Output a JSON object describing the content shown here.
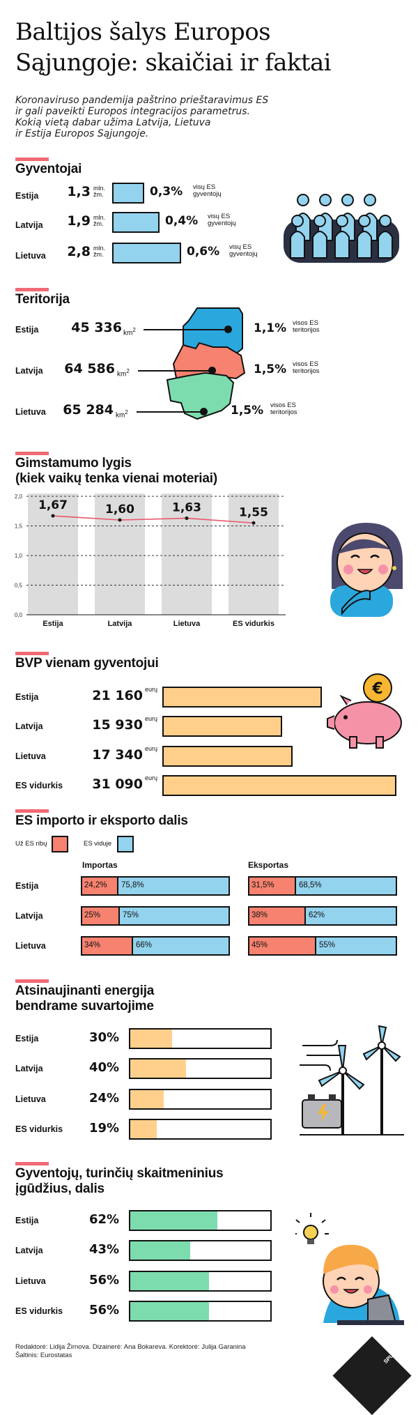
{
  "title_line1": "Baltijos šalys Europos",
  "title_line2": "Sąjungoje: skaičiai ir faktai",
  "lead": [
    "Koronaviruso pandemija paštrino prieštaravimus ES",
    "ir gali paveikti Europos integracijos parametrus.",
    "Kokią vietą dabar užima Latvija, Lietuva",
    "ir Estija Europos Sąjungoje."
  ],
  "population": {
    "heading": "Gyventojai",
    "unit_top": "mln.",
    "unit_bottom": "žm.",
    "share_top": "visų ES",
    "share_bottom": "gyventojų",
    "rows": [
      {
        "country": "Estija",
        "value": "1,3",
        "pct": "0,3%"
      },
      {
        "country": "Latvija",
        "value": "1,9",
        "pct": "0,4%"
      },
      {
        "country": "Lietuva",
        "value": "2,8",
        "pct": "0,6%"
      }
    ]
  },
  "territory": {
    "heading": "Teritorija",
    "unit": "km",
    "unit_exp": "2",
    "share_top": "visos ES",
    "share_bottom": "teritorijos",
    "rows": [
      {
        "country": "Estija",
        "value": "45 336",
        "pct": "1,1%"
      },
      {
        "country": "Latvija",
        "value": "64 586",
        "pct": "1,5%"
      },
      {
        "country": "Lietuva",
        "value": "65 284",
        "pct": "1,5%"
      }
    ]
  },
  "birth": {
    "heading1": "Gimstamumo lygis",
    "heading2": "(kiek vaikų tenka vienai moteriai)"
  },
  "chart_data": {
    "type": "line",
    "categories": [
      "Estija",
      "Latvija",
      "Lietuva",
      "ES vidurkis"
    ],
    "values": [
      1.67,
      1.6,
      1.63,
      1.55
    ],
    "value_labels": [
      "1,67",
      "1,60",
      "1,63",
      "1,55"
    ],
    "ylim": [
      0,
      2.0
    ],
    "yticks": [
      "0,0",
      "0,5",
      "1,0",
      "1,5",
      "2,0"
    ],
    "grid": true,
    "line_color": "#e8566a"
  },
  "gdp": {
    "heading": "BVP vienam gyventojui",
    "unit": "eurų",
    "rows": [
      {
        "country": "Estija",
        "value": "21 160",
        "amount": 21160
      },
      {
        "country": "Latvija",
        "value": "15 930",
        "amount": 15930
      },
      {
        "country": "Lietuva",
        "value": "17 340",
        "amount": 17340
      },
      {
        "country": "ES vidurkis",
        "value": "31 090",
        "amount": 31090
      }
    ]
  },
  "trade": {
    "heading": "ES importo ir eksporto dalis",
    "legend_outside": "Už ES ribų",
    "legend_inside": "ES viduje",
    "import_label": "Importas",
    "export_label": "Eksportas",
    "rows": [
      {
        "country": "Estija",
        "imp_out": "24,2%",
        "imp_out_v": 24.2,
        "imp_in": "75,8%",
        "exp_out": "31,5%",
        "exp_out_v": 31.5,
        "exp_in": "68,5%"
      },
      {
        "country": "Latvija",
        "imp_out": "25%",
        "imp_out_v": 25,
        "imp_in": "75%",
        "exp_out": "38%",
        "exp_out_v": 38,
        "exp_in": "62%"
      },
      {
        "country": "Lietuva",
        "imp_out": "34%",
        "imp_out_v": 34,
        "imp_in": "66%",
        "exp_out": "45%",
        "exp_out_v": 45,
        "exp_in": "55%"
      }
    ]
  },
  "renewable": {
    "heading1": "Atsinaujinanti energija",
    "heading2": "bendrame suvartojime",
    "rows": [
      {
        "country": "Estija",
        "value": "30%",
        "v": 30
      },
      {
        "country": "Latvija",
        "value": "40%",
        "v": 40
      },
      {
        "country": "Lietuva",
        "value": "24%",
        "v": 24
      },
      {
        "country": "ES vidurkis",
        "value": "19%",
        "v": 19
      }
    ]
  },
  "digital": {
    "heading1": "Gyventojų, turinčių skaitmeninius",
    "heading2": "įgūdžius, dalis",
    "rows": [
      {
        "country": "Estija",
        "value": "62%",
        "v": 62
      },
      {
        "country": "Latvija",
        "value": "43%",
        "v": 43
      },
      {
        "country": "Lietuva",
        "value": "56%",
        "v": 56
      },
      {
        "country": "ES vidurkis",
        "value": "56%",
        "v": 56
      }
    ]
  },
  "footer_line1": "Redaktorė: Lidija Žirnova. Dizainerė: Ana Bokareva. Korektorė: Julija Garanina",
  "footer_line2": "Šaltinis: Eurostatas",
  "brand": "SPUTNIK",
  "colors": {
    "accent_red": "#f06a73",
    "blue": "#93d3ee",
    "orange": "#ffcf8a",
    "salmon": "#f6826f",
    "green": "#7ddcae",
    "pink": "#f592a8"
  }
}
